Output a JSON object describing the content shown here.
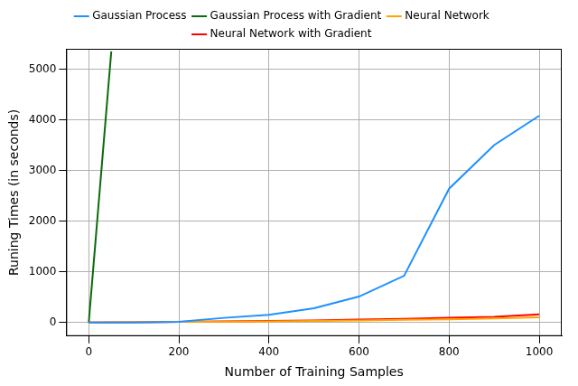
{
  "chart_data": {
    "type": "line",
    "x_label": "Number of Training Samples",
    "y_label": "Runing Times (in seconds)",
    "xlim": [
      -50,
      1050
    ],
    "ylim": [
      -270,
      5400
    ],
    "xticks": [
      0,
      200,
      400,
      600,
      800,
      1000
    ],
    "yticks": [
      0,
      1000,
      2000,
      3000,
      4000,
      5000
    ],
    "grid": true,
    "legend": "upper center",
    "series": [
      {
        "name": "Gaussian Process",
        "color": "#1e90ff",
        "x": [
          0,
          100,
          200,
          300,
          400,
          500,
          600,
          700,
          800,
          900,
          1000
        ],
        "values": [
          0,
          0,
          10,
          90,
          150,
          280,
          510,
          920,
          2640,
          3500,
          4080
        ]
      },
      {
        "name": "Gaussian Process with Gradient",
        "color": "#0b6b0b",
        "x": [
          0,
          50
        ],
        "values": [
          0,
          5350
        ]
      },
      {
        "name": "Neural Network",
        "color": "#ffa500",
        "x": [
          0,
          100,
          200,
          300,
          400,
          500,
          600,
          700,
          800,
          900,
          1000
        ],
        "values": [
          0,
          5,
          10,
          15,
          20,
          30,
          40,
          50,
          60,
          80,
          100
        ]
      },
      {
        "name": "Neural Network with Gradient",
        "color": "#ff0000",
        "x": [
          0,
          100,
          200,
          300,
          400,
          500,
          600,
          700,
          800,
          900,
          1000
        ],
        "values": [
          0,
          5,
          10,
          20,
          30,
          40,
          55,
          70,
          90,
          110,
          160
        ]
      }
    ]
  }
}
